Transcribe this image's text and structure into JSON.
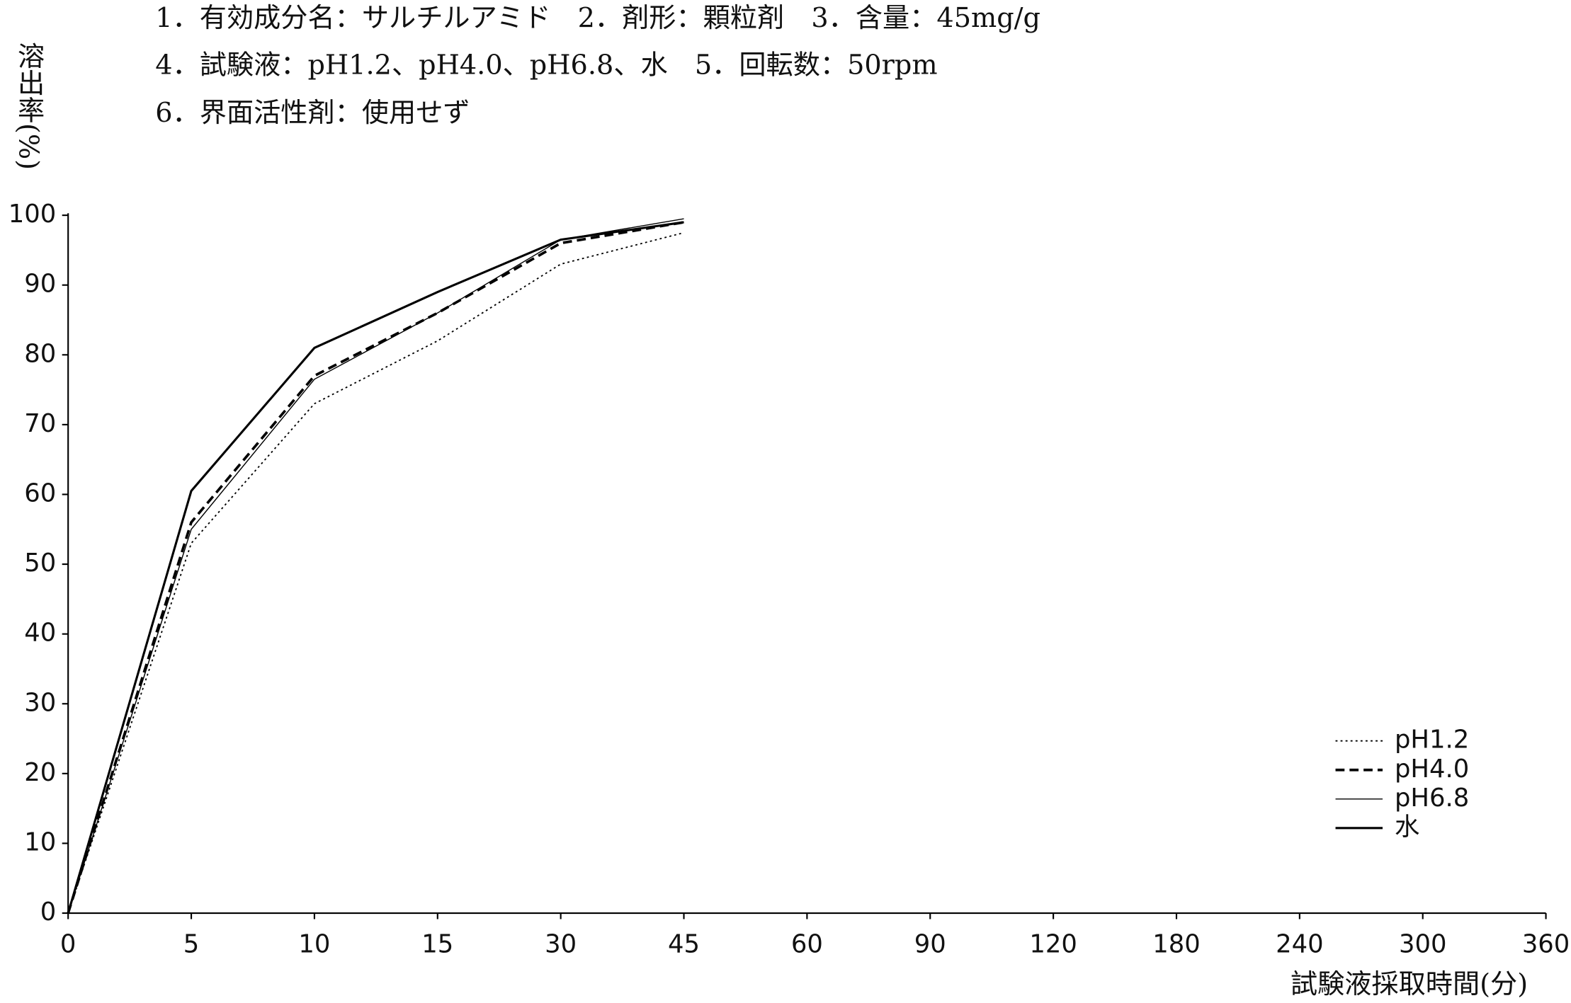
{
  "chart_data": {
    "type": "line",
    "title_lines": [
      "1．有効成分名：サルチルアミド　2．剤形：顆粒剤　3．含量：45mg/g",
      "4．試験液：pH1.2、pH4.0、pH6.8、水　5．回転数：50rpm",
      "6．界面活性剤：使用せず"
    ],
    "y_label": "溶出率(%)",
    "x_label": "試験液採取時間(分)",
    "categories": [
      "0",
      "5",
      "10",
      "15",
      "30",
      "45",
      "60",
      "90",
      "120",
      "180",
      "240",
      "300",
      "360"
    ],
    "series": [
      {
        "name": "pH1.2",
        "color": "#000000",
        "style": "dotted",
        "values": [
          0,
          53,
          73,
          82,
          93,
          97.5,
          null,
          null,
          null,
          null,
          null,
          null,
          null
        ]
      },
      {
        "name": "pH4.0",
        "color": "#000000",
        "style": "dashed",
        "values": [
          0,
          56,
          77,
          86,
          96,
          99,
          null,
          null,
          null,
          null,
          null,
          null,
          null
        ]
      },
      {
        "name": "pH6.8",
        "color": "#000000",
        "style": "thin",
        "values": [
          0,
          55,
          76.5,
          86,
          96.5,
          99.5,
          null,
          null,
          null,
          null,
          null,
          null,
          null
        ]
      },
      {
        "name": "水",
        "color": "#000000",
        "style": "solid",
        "values": [
          0,
          60.5,
          81,
          89,
          96.5,
          99,
          null,
          null,
          null,
          null,
          null,
          null,
          null
        ]
      }
    ],
    "ylim": [
      0,
      100
    ],
    "yticks": [
      0,
      10,
      20,
      30,
      40,
      50,
      60,
      70,
      80,
      90,
      100
    ],
    "legend": "lower right",
    "grid": false
  }
}
